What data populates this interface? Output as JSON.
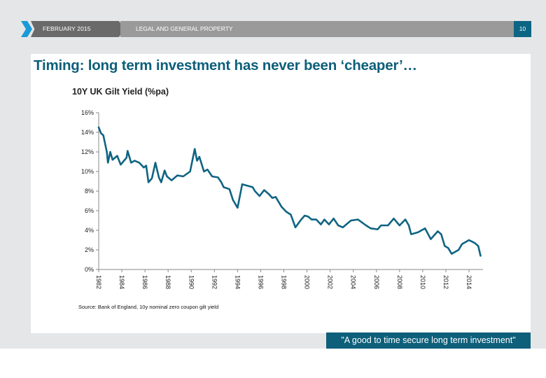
{
  "header": {
    "date": "FEBRUARY 2015",
    "section": "LEGAL AND GENERAL PROPERTY",
    "page_number": "10"
  },
  "slide": {
    "title": "Timing: long term investment has never been ‘cheaper’…",
    "source": "Source: Bank of England, 10y nominal zero coupon gilt yield",
    "quote": "\"A good to time secure long term investment\""
  },
  "colors": {
    "accent": "#0d5f7a",
    "page_badge": "#0d6584",
    "chevron": "#1a9ad6",
    "header_dark": "#6a6a6a",
    "header_light": "#9a9a9a",
    "series": "#0f6482"
  },
  "chart_data": {
    "type": "line",
    "title": "10Y UK Gilt Yield (%pa)",
    "xlabel": "",
    "ylabel": "",
    "ylim": [
      0,
      16
    ],
    "xlim": [
      1982,
      2015.1
    ],
    "y_ticks": [
      "0%",
      "2%",
      "4%",
      "6%",
      "8%",
      "10%",
      "12%",
      "14%",
      "16%"
    ],
    "y_tick_values": [
      0,
      2,
      4,
      6,
      8,
      10,
      12,
      14,
      16
    ],
    "x_ticks": [
      "1982",
      "1984",
      "1986",
      "1988",
      "1990",
      "1992",
      "1994",
      "1996",
      "1998",
      "2000",
      "2002",
      "2004",
      "2006",
      "2008",
      "2010",
      "2012",
      "2014"
    ],
    "x_tick_values": [
      1982,
      1984,
      1986,
      1988,
      1990,
      1992,
      1994,
      1996,
      1998,
      2000,
      2002,
      2004,
      2006,
      2008,
      2010,
      2012,
      2014
    ],
    "grid": false,
    "legend": "none",
    "series": [
      {
        "name": "10Y UK Gilt Yield",
        "x": [
          1982.0,
          1982.2,
          1982.4,
          1982.7,
          1982.8,
          1983.0,
          1983.2,
          1983.6,
          1983.9,
          1984.4,
          1984.5,
          1984.8,
          1985.1,
          1985.5,
          1985.9,
          1986.1,
          1986.3,
          1986.6,
          1986.9,
          1987.2,
          1987.4,
          1987.7,
          1987.9,
          1988.3,
          1988.8,
          1989.3,
          1989.9,
          1990.3,
          1990.5,
          1990.7,
          1991.1,
          1991.4,
          1991.8,
          1992.3,
          1992.6,
          1992.8,
          1993.3,
          1993.6,
          1994.0,
          1994.4,
          1994.7,
          1995.3,
          1995.5,
          1995.9,
          1996.3,
          1996.7,
          1997.0,
          1997.3,
          1997.8,
          1998.2,
          1998.6,
          1999.0,
          1999.5,
          1999.8,
          2000.1,
          2000.4,
          2000.8,
          2001.2,
          2001.5,
          2001.9,
          2002.3,
          2002.7,
          2003.1,
          2003.8,
          2004.4,
          2005.1,
          2005.5,
          2006.1,
          2006.4,
          2007.0,
          2007.5,
          2008.0,
          2008.5,
          2008.8,
          2009.0,
          2009.3,
          2009.6,
          2010.2,
          2010.7,
          2011.3,
          2011.6,
          2011.9,
          2012.2,
          2012.5,
          2013.1,
          2013.4,
          2014.0,
          2014.5,
          2014.8,
          2015.0
        ],
        "values": [
          14.5,
          13.9,
          13.7,
          12.0,
          10.9,
          12.0,
          11.2,
          11.6,
          10.7,
          11.4,
          12.1,
          10.9,
          11.1,
          10.9,
          10.4,
          10.6,
          8.9,
          9.3,
          10.9,
          9.4,
          8.9,
          10.1,
          9.5,
          9.1,
          9.6,
          9.5,
          10.0,
          12.3,
          11.1,
          11.5,
          10.0,
          10.2,
          9.5,
          9.4,
          8.9,
          8.4,
          8.2,
          7.1,
          6.3,
          8.7,
          8.6,
          8.4,
          8.0,
          7.5,
          8.1,
          7.7,
          7.3,
          7.4,
          6.4,
          5.9,
          5.6,
          4.3,
          5.1,
          5.5,
          5.4,
          5.1,
          5.1,
          4.6,
          5.1,
          4.6,
          5.2,
          4.5,
          4.3,
          5.0,
          5.1,
          4.5,
          4.2,
          4.1,
          4.5,
          4.5,
          5.2,
          4.5,
          5.1,
          4.5,
          3.6,
          3.7,
          3.8,
          4.2,
          3.1,
          3.9,
          3.6,
          2.4,
          2.2,
          1.6,
          2.0,
          2.6,
          3.0,
          2.7,
          2.4,
          1.4
        ]
      }
    ]
  }
}
